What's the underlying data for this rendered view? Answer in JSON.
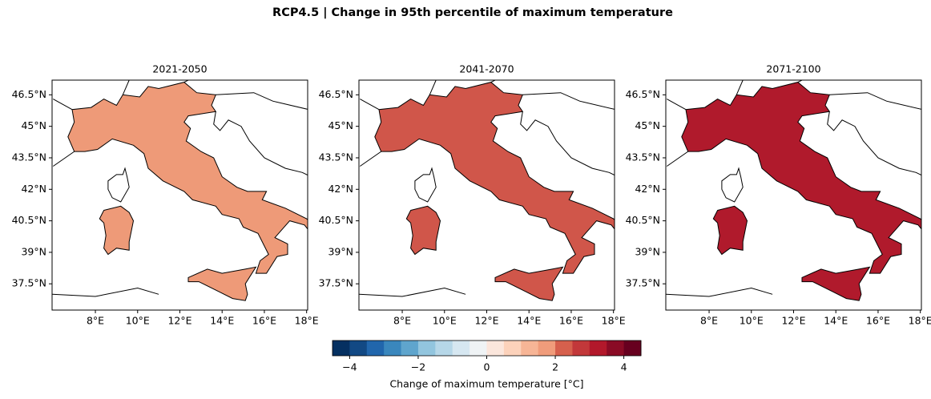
{
  "title": "RCP4.5 | Change in 95th percentile of maximum temperature",
  "panels": [
    {
      "title": "2021-2050",
      "fill": "#ee9a78"
    },
    {
      "title": "2041-2070",
      "fill": "#d0564a"
    },
    {
      "title": "2071-2100",
      "fill": "#b01a2c"
    }
  ],
  "xlim": [
    5.95,
    18.05
  ],
  "ylim": [
    36.25,
    47.2
  ],
  "xticks": [
    {
      "value": 8,
      "label": "8°E"
    },
    {
      "value": 10,
      "label": "10°E"
    },
    {
      "value": 12,
      "label": "12°E"
    },
    {
      "value": 14,
      "label": "14°E"
    },
    {
      "value": 16,
      "label": "16°E"
    },
    {
      "value": 18,
      "label": "18°E"
    }
  ],
  "yticks": [
    {
      "value": 37.5,
      "label": "37.5°N"
    },
    {
      "value": 39,
      "label": "39°N"
    },
    {
      "value": 40.5,
      "label": "40.5°N"
    },
    {
      "value": 42,
      "label": "42°N"
    },
    {
      "value": 43.5,
      "label": "43.5°N"
    },
    {
      "value": 45,
      "label": "45°N"
    },
    {
      "value": 46.5,
      "label": "46.5°N"
    }
  ],
  "colorbar": {
    "label": "Change of maximum temperature [°C]",
    "lim": [
      -4.5,
      4.5
    ],
    "ticks": [
      {
        "value": -4,
        "label": "−4"
      },
      {
        "value": -2,
        "label": "−2"
      },
      0,
      2,
      4
    ],
    "colors": [
      "#053061",
      "#124984",
      "#2166ac",
      "#3a87bd",
      "#5fa5cd",
      "#92c5de",
      "#b6d7e8",
      "#d6e7f1",
      "#eff3f5",
      "#fbe6dc",
      "#fcd2bb",
      "#f7b596",
      "#f09c7b",
      "#d6604d",
      "#c2383a",
      "#b2182b",
      "#8a0b25",
      "#67001f"
    ]
  }
}
